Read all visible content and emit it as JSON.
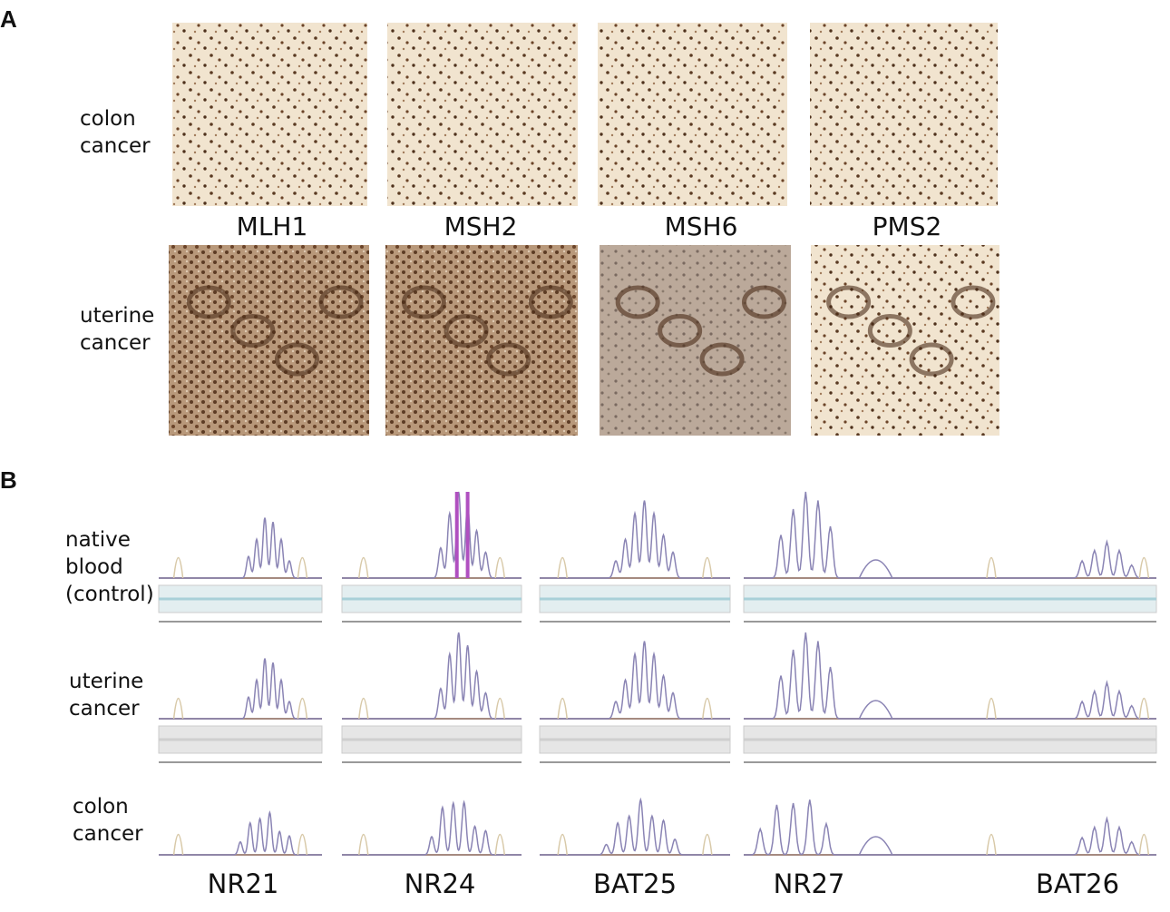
{
  "panel_a": {
    "label": "A",
    "rows": [
      [
        "colon",
        "cancer"
      ],
      [
        "uterine",
        "cancer"
      ]
    ],
    "columns": [
      "MLH1",
      "MSH2",
      "MSH6",
      "PMS2"
    ]
  },
  "panel_b": {
    "label": "B",
    "rows": [
      [
        "native",
        "blood",
        "(control)"
      ],
      [
        "uterine",
        "cancer"
      ],
      [
        "colon",
        "cancer"
      ]
    ],
    "markers": [
      "NR21",
      "NR24",
      "BAT25",
      "NR27",
      "BAT26"
    ]
  }
}
